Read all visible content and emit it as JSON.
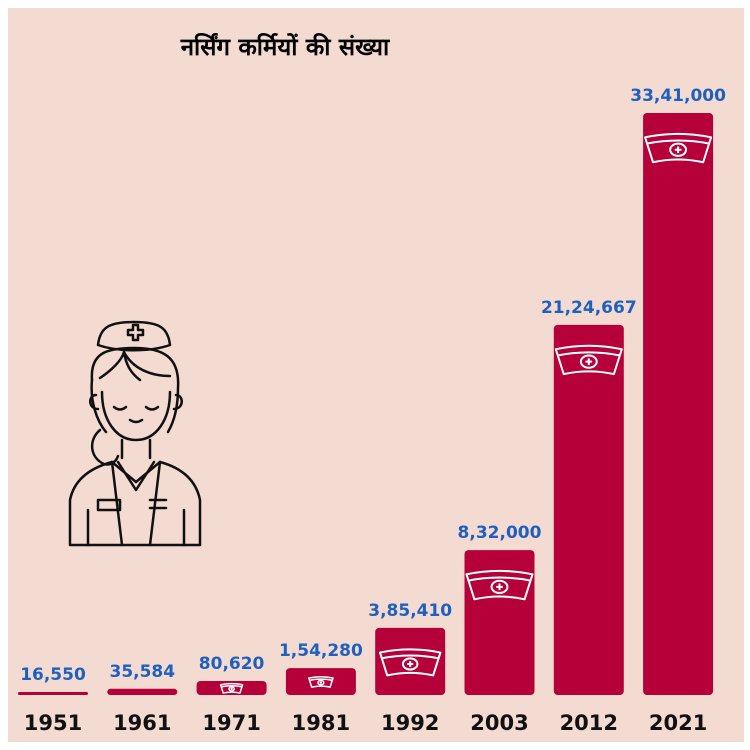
{
  "chart_data": {
    "type": "bar",
    "title": "नर्सिंग कर्मियों की संख्या",
    "categories": [
      "1951",
      "1961",
      "1971",
      "1981",
      "1992",
      "2003",
      "2012",
      "2021"
    ],
    "values": [
      16550,
      35584,
      80620,
      154280,
      385410,
      832000,
      2124667,
      3341000
    ],
    "value_labels": [
      "16,550",
      "35,584",
      "80,620",
      "1,54,280",
      "3,85,410",
      "8,32,000",
      "21,24,667",
      "33,41,000"
    ],
    "xlabel": "",
    "ylabel": "",
    "ylim": [
      0,
      3341000
    ],
    "grid": false,
    "legend": "none"
  },
  "colors": {
    "background": "#f4dbd2",
    "bar": "#b5003a",
    "value_label": "#1f5fbf",
    "tick_label": "#111111",
    "icon_stroke": "#ffffff",
    "illustration_stroke": "#111111"
  },
  "icons": {
    "bar_icon": "nurse-cap-icon",
    "illustration": "nurse-illustration"
  }
}
